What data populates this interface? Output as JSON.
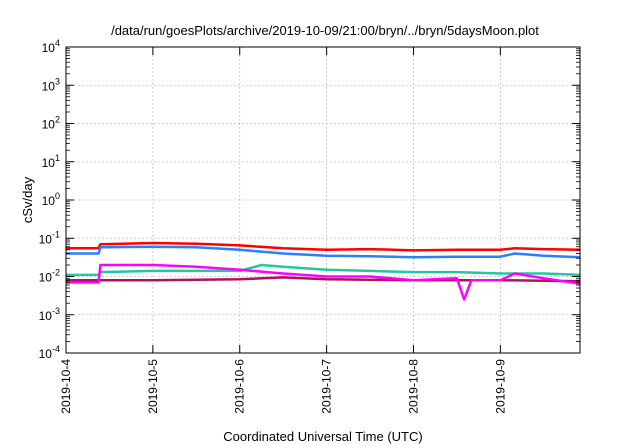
{
  "chart_data": {
    "type": "line",
    "title": "/data/run/goesPlots/archive/2019-10-09/21:00/bryn/../bryn/5daysMoon.plot",
    "xlabel": "Coordinated Universal Time (UTC)",
    "ylabel": "cSv/day",
    "yscale": "log",
    "ylim": [
      0.0001,
      10000
    ],
    "xlim": [
      "2019-10-04T00:00",
      "2019-10-09T22:00"
    ],
    "grid": true,
    "legend": "none",
    "y_ticks": [
      {
        "base": "10",
        "exp": "-4"
      },
      {
        "base": "10",
        "exp": "-3"
      },
      {
        "base": "10",
        "exp": "-2"
      },
      {
        "base": "10",
        "exp": "-1"
      },
      {
        "base": "10",
        "exp": "0"
      },
      {
        "base": "10",
        "exp": "1"
      },
      {
        "base": "10",
        "exp": "2"
      },
      {
        "base": "10",
        "exp": "3"
      },
      {
        "base": "10",
        "exp": "4"
      }
    ],
    "x_ticks": [
      "2019-10-4",
      "2019-10-5",
      "2019-10-6",
      "2019-10-7",
      "2019-10-8",
      "2019-10-9"
    ],
    "series": [
      {
        "color": "#ff0000",
        "x": [
          "2019-10-04T00:00",
          "2019-10-04T09:00",
          "2019-10-04T09:30",
          "2019-10-05T00:00",
          "2019-10-05T12:00",
          "2019-10-06T00:00",
          "2019-10-06T12:00",
          "2019-10-07T00:00",
          "2019-10-07T12:00",
          "2019-10-08T00:00",
          "2019-10-08T12:00",
          "2019-10-09T00:00",
          "2019-10-09T04:00",
          "2019-10-09T12:00",
          "2019-10-09T22:00"
        ],
        "y": [
          0.055,
          0.055,
          0.07,
          0.075,
          0.072,
          0.065,
          0.055,
          0.05,
          0.052,
          0.048,
          0.05,
          0.05,
          0.055,
          0.052,
          0.05
        ]
      },
      {
        "color": "#2a7fff",
        "x": [
          "2019-10-04T00:00",
          "2019-10-04T09:00",
          "2019-10-04T09:30",
          "2019-10-05T00:00",
          "2019-10-05T12:00",
          "2019-10-06T00:00",
          "2019-10-06T12:00",
          "2019-10-07T00:00",
          "2019-10-07T12:00",
          "2019-10-08T00:00",
          "2019-10-08T12:00",
          "2019-10-09T00:00",
          "2019-10-09T04:00",
          "2019-10-09T12:00",
          "2019-10-09T22:00"
        ],
        "y": [
          0.04,
          0.04,
          0.058,
          0.06,
          0.058,
          0.05,
          0.04,
          0.035,
          0.034,
          0.032,
          0.033,
          0.033,
          0.04,
          0.035,
          0.032
        ]
      },
      {
        "color": "#22c7a0",
        "x": [
          "2019-10-04T00:00",
          "2019-10-04T09:00",
          "2019-10-04T09:30",
          "2019-10-05T00:00",
          "2019-10-05T12:00",
          "2019-10-06T00:00",
          "2019-10-06T06:00",
          "2019-10-06T12:00",
          "2019-10-07T00:00",
          "2019-10-07T12:00",
          "2019-10-08T00:00",
          "2019-10-08T12:00",
          "2019-10-09T00:00",
          "2019-10-09T04:00",
          "2019-10-09T12:00",
          "2019-10-09T22:00"
        ],
        "y": [
          0.011,
          0.011,
          0.013,
          0.014,
          0.014,
          0.014,
          0.02,
          0.018,
          0.015,
          0.014,
          0.013,
          0.013,
          0.012,
          0.012,
          0.012,
          0.011
        ]
      },
      {
        "color": "#b01060",
        "x": [
          "2019-10-04T00:00",
          "2019-10-05T00:00",
          "2019-10-06T00:00",
          "2019-10-06T12:00",
          "2019-10-07T00:00",
          "2019-10-08T00:00",
          "2019-10-09T00:00",
          "2019-10-09T22:00"
        ],
        "y": [
          0.008,
          0.008,
          0.0085,
          0.0095,
          0.0085,
          0.008,
          0.008,
          0.0075
        ]
      },
      {
        "color": "#ff00ff",
        "x": [
          "2019-10-04T00:00",
          "2019-10-04T09:00",
          "2019-10-04T09:30",
          "2019-10-05T00:00",
          "2019-10-05T12:00",
          "2019-10-06T00:00",
          "2019-10-06T12:00",
          "2019-10-07T00:00",
          "2019-10-07T12:00",
          "2019-10-08T00:00",
          "2019-10-08T12:00",
          "2019-10-08T14:00",
          "2019-10-08T16:00",
          "2019-10-09T00:00",
          "2019-10-09T04:00",
          "2019-10-09T12:00",
          "2019-10-09T22:00"
        ],
        "y": [
          0.007,
          0.007,
          0.02,
          0.02,
          0.018,
          0.015,
          0.012,
          0.01,
          0.01,
          0.008,
          0.009,
          0.0025,
          0.008,
          0.008,
          0.012,
          0.009,
          0.0065
        ]
      }
    ]
  }
}
